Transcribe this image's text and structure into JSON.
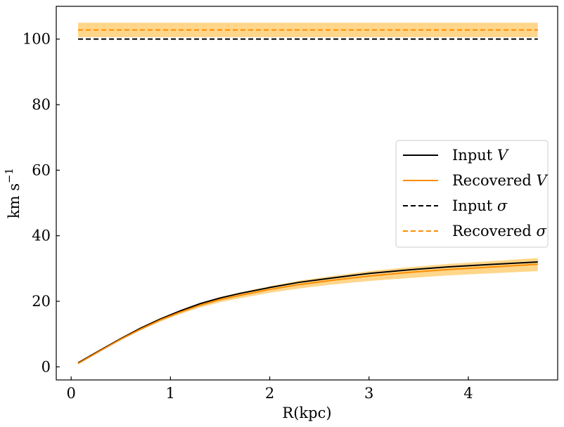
{
  "chart_data": {
    "type": "line",
    "xlabel": "R(kpc)",
    "ylabel": "km s",
    "ylabel_superscript": "−1",
    "xlim": [
      -0.15,
      4.9
    ],
    "ylim": [
      -4,
      110
    ],
    "xticks": [
      0,
      1,
      2,
      3,
      4
    ],
    "yticks": [
      0,
      20,
      40,
      60,
      80,
      100
    ],
    "grid": false,
    "legend_position": "right",
    "series": [
      {
        "name": "Input V",
        "color": "#000000",
        "dash": "solid",
        "x": [
          0.07,
          0.3,
          0.5,
          0.7,
          0.9,
          1.1,
          1.3,
          1.5,
          1.7,
          2.0,
          2.3,
          2.6,
          3.0,
          3.4,
          3.8,
          4.2,
          4.7
        ],
        "y": [
          1.2,
          5.2,
          8.6,
          11.8,
          14.6,
          17.1,
          19.3,
          21.0,
          22.4,
          24.2,
          25.8,
          27.0,
          28.5,
          29.6,
          30.5,
          31.2,
          32.0
        ]
      },
      {
        "name": "Recovered V",
        "color": "#ff8c00",
        "dash": "solid",
        "x": [
          0.07,
          0.3,
          0.5,
          0.7,
          0.9,
          1.1,
          1.3,
          1.5,
          1.7,
          2.0,
          2.3,
          2.6,
          3.0,
          3.4,
          3.8,
          4.2,
          4.7
        ],
        "y": [
          1.0,
          5.0,
          8.4,
          11.5,
          14.3,
          16.7,
          18.8,
          20.5,
          21.8,
          23.6,
          25.1,
          26.3,
          27.7,
          28.8,
          29.7,
          30.4,
          31.3
        ],
        "band_lower": [
          0.8,
          4.8,
          8.1,
          11.1,
          13.8,
          16.1,
          18.1,
          19.7,
          20.9,
          22.6,
          23.9,
          25.0,
          26.2,
          27.1,
          27.9,
          28.5,
          29.2
        ],
        "band_upper": [
          1.2,
          5.3,
          8.8,
          12.0,
          14.9,
          17.3,
          19.5,
          21.3,
          22.7,
          24.6,
          26.3,
          27.6,
          29.2,
          30.4,
          31.4,
          32.2,
          33.2
        ]
      },
      {
        "name": "Input σ",
        "color": "#000000",
        "dash": "dashed",
        "x": [
          0.07,
          4.7
        ],
        "y": [
          100,
          100
        ]
      },
      {
        "name": "Recovered σ",
        "color": "#ff8c00",
        "dash": "dashed",
        "x": [
          0.07,
          4.7
        ],
        "y": [
          102.8,
          102.8
        ],
        "band_lower": [
          100.6,
          100.6
        ],
        "band_upper": [
          105.0,
          105.0
        ]
      }
    ],
    "band_color": "#ffd68a",
    "legend": [
      {
        "label": "Input ",
        "italic": "V",
        "series": 0
      },
      {
        "label": "Recovered ",
        "italic": "V",
        "series": 1
      },
      {
        "label": "Input ",
        "italic": "σ",
        "series": 2
      },
      {
        "label": "Recovered ",
        "italic": "σ",
        "series": 3
      }
    ]
  }
}
